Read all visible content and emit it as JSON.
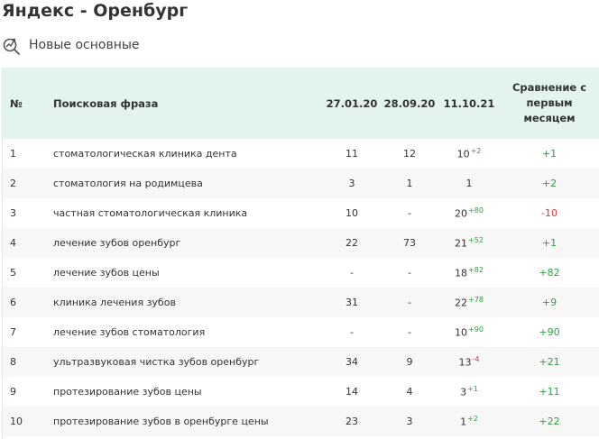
{
  "page": {
    "title": "Яндекс - Оренбург",
    "subtitle": "Новые основные",
    "icon": "search-trend-icon"
  },
  "colors": {
    "header_bg": "#e3f4ef",
    "positive": "#2ea043",
    "negative": "#d9363e",
    "row_alt": "#f7f7f7"
  },
  "table": {
    "headers": {
      "num": "№",
      "phrase": "Поисковая фраза",
      "date1": "27.01.20",
      "date2": "28.09.20",
      "date3": "11.10.21",
      "compare_line1": "Сравнение с",
      "compare_line2": "первым",
      "compare_line3": "месяцем"
    },
    "rows": [
      {
        "num": "1",
        "phrase": "стоматологическая клиника дента",
        "d1": "11",
        "d2": "12",
        "d3": "10",
        "delta": "+2",
        "delta_sign": "pos",
        "cmp": "+1",
        "cmp_sign": "pos"
      },
      {
        "num": "2",
        "phrase": "стоматология на родимцева",
        "d1": "3",
        "d2": "1",
        "d3": "1",
        "delta": "",
        "delta_sign": "pos",
        "cmp": "+2",
        "cmp_sign": "pos"
      },
      {
        "num": "3",
        "phrase": "частная стоматологическая клиника",
        "d1": "10",
        "d2": "-",
        "d3": "20",
        "delta": "+80",
        "delta_sign": "pos",
        "cmp": "-10",
        "cmp_sign": "neg"
      },
      {
        "num": "4",
        "phrase": "лечение зубов оренбург",
        "d1": "22",
        "d2": "73",
        "d3": "21",
        "delta": "+52",
        "delta_sign": "pos",
        "cmp": "+1",
        "cmp_sign": "pos"
      },
      {
        "num": "5",
        "phrase": "лечение зубов цены",
        "d1": "-",
        "d2": "-",
        "d3": "18",
        "delta": "+82",
        "delta_sign": "pos",
        "cmp": "+82",
        "cmp_sign": "pos"
      },
      {
        "num": "6",
        "phrase": "клиника лечения зубов",
        "d1": "31",
        "d2": "-",
        "d3": "22",
        "delta": "+78",
        "delta_sign": "pos",
        "cmp": "+9",
        "cmp_sign": "pos"
      },
      {
        "num": "7",
        "phrase": "лечение зубов стоматология",
        "d1": "-",
        "d2": "-",
        "d3": "10",
        "delta": "+90",
        "delta_sign": "pos",
        "cmp": "+90",
        "cmp_sign": "pos"
      },
      {
        "num": "8",
        "phrase": "ультразвуковая чистка зубов оренбург",
        "d1": "34",
        "d2": "9",
        "d3": "13",
        "delta": "-4",
        "delta_sign": "neg",
        "cmp": "+21",
        "cmp_sign": "pos"
      },
      {
        "num": "9",
        "phrase": "протезирование зубов цены",
        "d1": "14",
        "d2": "4",
        "d3": "3",
        "delta": "+1",
        "delta_sign": "pos",
        "cmp": "+11",
        "cmp_sign": "pos"
      },
      {
        "num": "10",
        "phrase": "протезирование зубов в оренбурге цены",
        "d1": "23",
        "d2": "3",
        "d3": "1",
        "delta": "+2",
        "delta_sign": "pos",
        "cmp": "+22",
        "cmp_sign": "pos"
      }
    ]
  }
}
